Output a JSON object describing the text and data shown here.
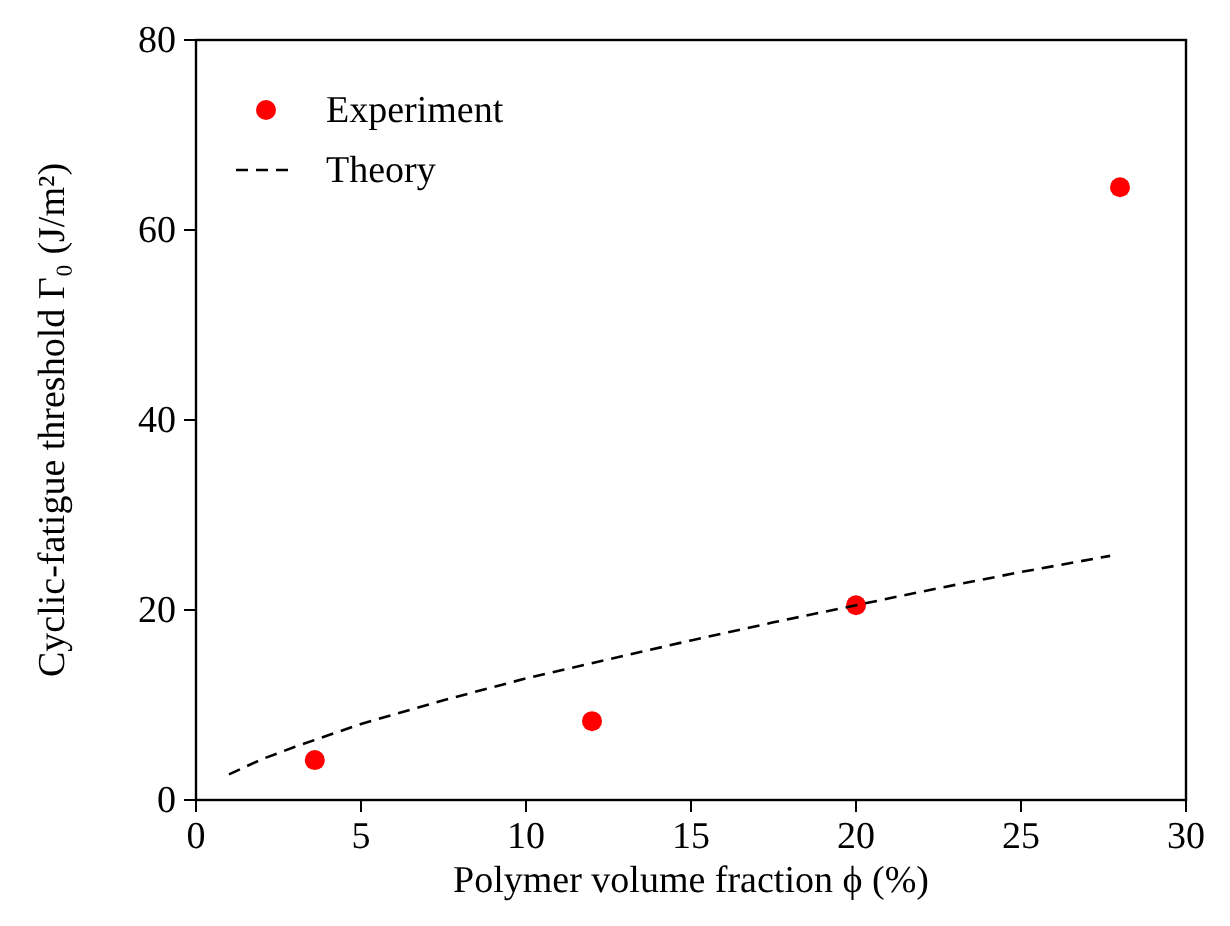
{
  "chart_data": {
    "type": "scatter",
    "xlabel": "Polymer volume fraction ϕ (%)",
    "ylabel": "Cyclic-fatigue threshold Γ₀ (J/m²)",
    "xlim": [
      0,
      30
    ],
    "xticks": [
      0,
      5,
      10,
      15,
      20,
      25,
      30
    ],
    "ylim": [
      0,
      80
    ],
    "yticks": [
      0,
      20,
      40,
      60,
      80
    ],
    "legend": "top left",
    "grid": false,
    "series": [
      {
        "name": "Experiment",
        "color": "#ff0000",
        "marker": "circle",
        "x": [
          3.6,
          12,
          20,
          28
        ],
        "values": [
          4.2,
          8.3,
          20.5,
          64.5
        ]
      },
      {
        "name": "Theory",
        "type": "line",
        "color": "#000000",
        "line_style": "dashed",
        "x": [
          1,
          2,
          3,
          5,
          7.5,
          10,
          12.5,
          15,
          17.5,
          20,
          22.5,
          25,
          27.7
        ],
        "values": [
          2.7,
          4.3,
          5.6,
          8,
          10.5,
          12.8,
          14.8,
          16.8,
          18.7,
          20.5,
          22.3,
          24,
          25.7
        ]
      }
    ]
  }
}
